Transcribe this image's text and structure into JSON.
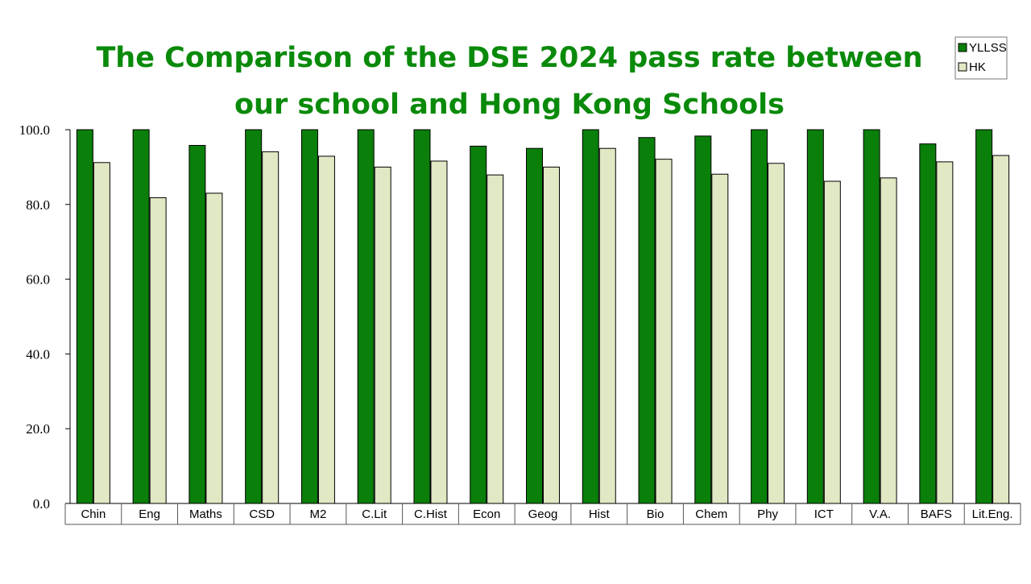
{
  "chart_data": {
    "type": "bar",
    "title_line1": "The Comparison of the DSE 2024 pass rate between",
    "title_line2": "our school and Hong Kong Schools",
    "categories": [
      "Chin",
      "Eng",
      "Maths",
      "CSD",
      "M2",
      "C.Lit",
      "C.Hist",
      "Econ",
      "Geog",
      "Hist",
      "Bio",
      "Chem",
      "Phy",
      "ICT",
      "V.A.",
      "BAFS",
      "Lit.Eng."
    ],
    "series": [
      {
        "name": "YLLSS",
        "color": "#0a7f0a",
        "values": [
          100.0,
          100.0,
          95.8,
          100.0,
          100.0,
          100.0,
          100.0,
          95.6,
          95.0,
          100.0,
          97.9,
          98.3,
          100.0,
          100.0,
          100.0,
          96.2,
          100.0
        ]
      },
      {
        "name": "HK",
        "color": "#e0e8c4",
        "values": [
          91.2,
          81.8,
          83.0,
          94.1,
          92.9,
          90.0,
          91.6,
          87.9,
          90.0,
          95.0,
          92.1,
          88.1,
          91.0,
          86.2,
          87.1,
          91.4,
          93.1
        ]
      }
    ],
    "yticks": [
      "0.0",
      "20.0",
      "40.0",
      "60.0",
      "80.0",
      "100.0"
    ],
    "ylim": [
      0,
      100
    ],
    "grid": false,
    "legend_position": "top-right"
  }
}
